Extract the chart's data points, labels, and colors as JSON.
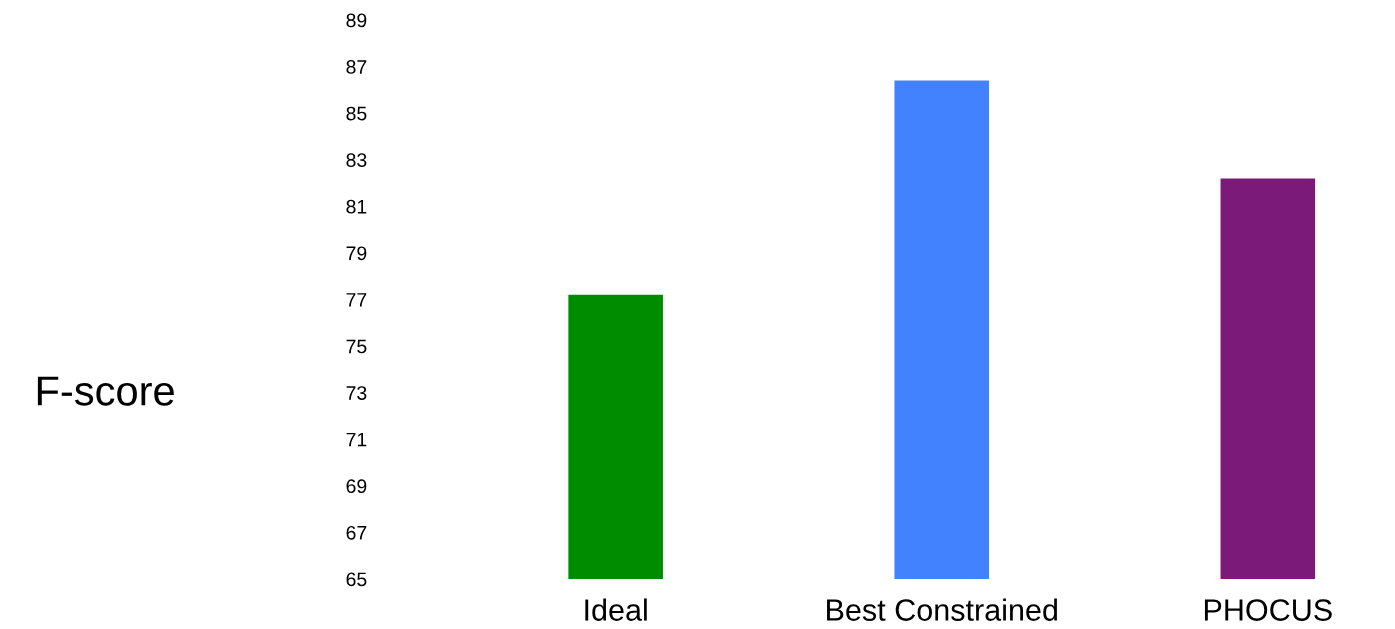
{
  "chart_data": {
    "type": "bar",
    "ylabel": "F-score",
    "categories": [
      "Ideal",
      "Best Constrained",
      "PHOCUS"
    ],
    "values": [
      77.2,
      86.4,
      82.2
    ],
    "colors": [
      "#008c00",
      "#4382ff",
      "#7b1a78"
    ],
    "ylim": [
      65,
      89
    ],
    "yticks": [
      65,
      67,
      69,
      71,
      73,
      75,
      77,
      79,
      81,
      83,
      85,
      87,
      89
    ],
    "grid": false,
    "legend": false
  }
}
